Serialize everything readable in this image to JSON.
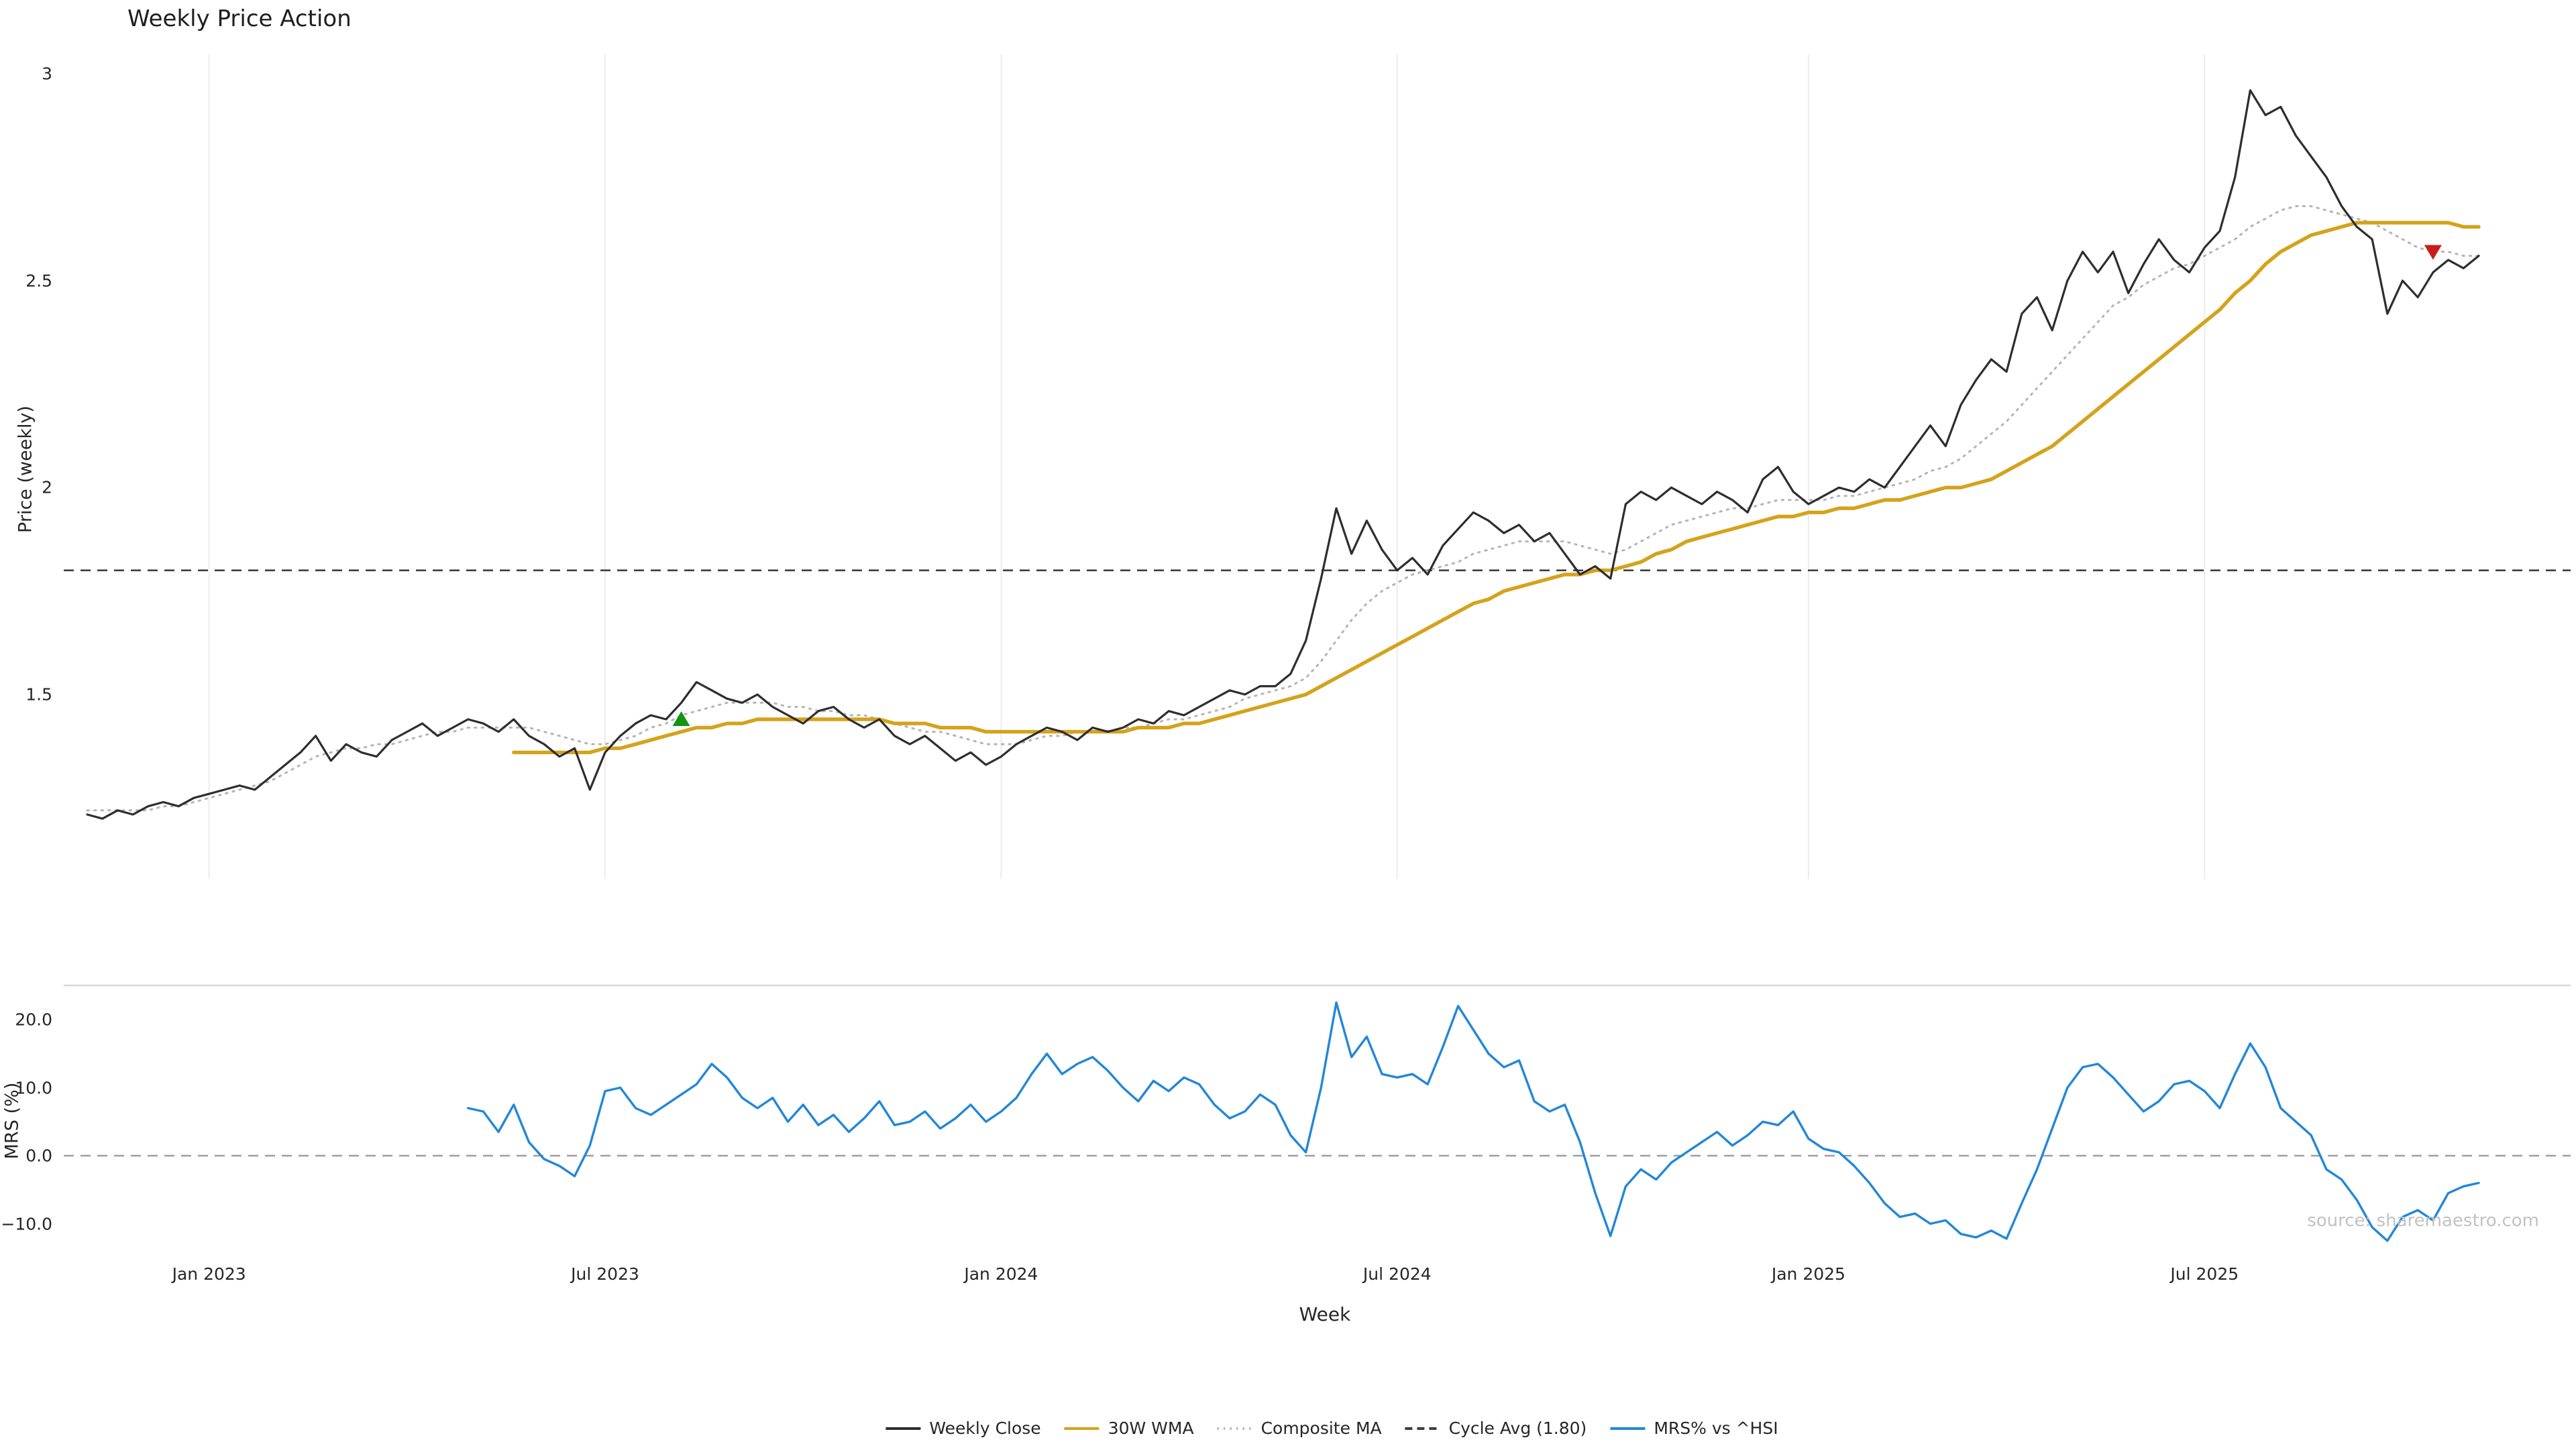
{
  "source_note": "source: sharemaestro.com",
  "colors": {
    "weekly_close": "#2e2e2e",
    "wma_30w": "#d4a31c",
    "composite_ma": "#b5b5b5",
    "cycle_avg": "#3d3d3d",
    "mrs": "#2287d8",
    "zero_line": "#9e9e9e",
    "grid": "#ececec",
    "spine": "#d8d8d8",
    "buy_marker": "#149414",
    "sell_marker": "#c91d1d"
  },
  "chart_data": {
    "type": "line",
    "title": "Weekly Price Action",
    "x_axis": {
      "label": "Week",
      "tick_labels": [
        "Jan 2023",
        "Jul 2023",
        "Jan 2024",
        "Jul 2024",
        "Jan 2025",
        "Jul 2025"
      ],
      "tick_week_indices": [
        8,
        34,
        60,
        86,
        113,
        139
      ],
      "weeks_total": 158
    },
    "price_panel": {
      "ylabel": "Price (weekly)",
      "tick_values": [
        1.5,
        2,
        2.5,
        3
      ],
      "tick_labels": [
        "1.5",
        "2",
        "2.5",
        "3"
      ],
      "ylim": [
        1.05,
        3.05
      ],
      "reference_line": {
        "name": "Cycle Avg (1.80)",
        "value": 1.8,
        "style": "dashed"
      }
    },
    "mrs_panel": {
      "ylabel": "MRS (%)",
      "tick_values": [
        -10,
        0,
        10,
        20
      ],
      "tick_labels": [
        "−10.0",
        "0.0",
        "10.0",
        "20.0"
      ],
      "ylim": [
        -15,
        25
      ],
      "zero_line": {
        "value": 0,
        "style": "dashed"
      }
    },
    "series": [
      {
        "name": "Weekly Close",
        "key": "weekly_close",
        "panel": "price",
        "style": "solid",
        "color": "#2e2e2e",
        "start_index": 0,
        "values": [
          1.21,
          1.2,
          1.22,
          1.21,
          1.23,
          1.24,
          1.23,
          1.25,
          1.26,
          1.27,
          1.28,
          1.27,
          1.3,
          1.33,
          1.36,
          1.4,
          1.34,
          1.38,
          1.36,
          1.35,
          1.39,
          1.41,
          1.43,
          1.4,
          1.42,
          1.44,
          1.43,
          1.41,
          1.44,
          1.4,
          1.38,
          1.35,
          1.37,
          1.27,
          1.36,
          1.4,
          1.43,
          1.45,
          1.44,
          1.48,
          1.53,
          1.51,
          1.49,
          1.48,
          1.5,
          1.47,
          1.45,
          1.43,
          1.46,
          1.47,
          1.44,
          1.42,
          1.44,
          1.4,
          1.38,
          1.4,
          1.37,
          1.34,
          1.36,
          1.33,
          1.35,
          1.38,
          1.4,
          1.42,
          1.41,
          1.39,
          1.42,
          1.41,
          1.42,
          1.44,
          1.43,
          1.46,
          1.45,
          1.47,
          1.49,
          1.51,
          1.5,
          1.52,
          1.52,
          1.55,
          1.63,
          1.78,
          1.95,
          1.84,
          1.92,
          1.85,
          1.8,
          1.83,
          1.79,
          1.86,
          1.9,
          1.94,
          1.92,
          1.89,
          1.91,
          1.87,
          1.89,
          1.84,
          1.79,
          1.81,
          1.78,
          1.96,
          1.99,
          1.97,
          2.0,
          1.98,
          1.96,
          1.99,
          1.97,
          1.94,
          2.02,
          2.05,
          1.99,
          1.96,
          1.98,
          2.0,
          1.99,
          2.02,
          2.0,
          2.05,
          2.1,
          2.15,
          2.1,
          2.2,
          2.26,
          2.31,
          2.28,
          2.42,
          2.46,
          2.38,
          2.5,
          2.57,
          2.52,
          2.57,
          2.47,
          2.54,
          2.6,
          2.55,
          2.52,
          2.58,
          2.62,
          2.75,
          2.96,
          2.9,
          2.92,
          2.85,
          2.8,
          2.75,
          2.68,
          2.63,
          2.6,
          2.42,
          2.5,
          2.46,
          2.52,
          2.55,
          2.53,
          2.56
        ]
      },
      {
        "name": "30W WMA",
        "key": "wma_30w",
        "panel": "price",
        "style": "solid",
        "color": "#d4a31c",
        "start_index": 28,
        "values": [
          1.36,
          1.36,
          1.36,
          1.36,
          1.36,
          1.36,
          1.37,
          1.37,
          1.38,
          1.39,
          1.4,
          1.41,
          1.42,
          1.42,
          1.43,
          1.43,
          1.44,
          1.44,
          1.44,
          1.44,
          1.44,
          1.44,
          1.44,
          1.44,
          1.44,
          1.43,
          1.43,
          1.43,
          1.42,
          1.42,
          1.42,
          1.41,
          1.41,
          1.41,
          1.41,
          1.41,
          1.41,
          1.41,
          1.41,
          1.41,
          1.41,
          1.42,
          1.42,
          1.42,
          1.43,
          1.43,
          1.44,
          1.45,
          1.46,
          1.47,
          1.48,
          1.49,
          1.5,
          1.52,
          1.54,
          1.56,
          1.58,
          1.6,
          1.62,
          1.64,
          1.66,
          1.68,
          1.7,
          1.72,
          1.73,
          1.75,
          1.76,
          1.77,
          1.78,
          1.79,
          1.79,
          1.8,
          1.8,
          1.81,
          1.82,
          1.84,
          1.85,
          1.87,
          1.88,
          1.89,
          1.9,
          1.91,
          1.92,
          1.93,
          1.93,
          1.94,
          1.94,
          1.95,
          1.95,
          1.96,
          1.97,
          1.97,
          1.98,
          1.99,
          2.0,
          2.0,
          2.01,
          2.02,
          2.04,
          2.06,
          2.08,
          2.1,
          2.13,
          2.16,
          2.19,
          2.22,
          2.25,
          2.28,
          2.31,
          2.34,
          2.37,
          2.4,
          2.43,
          2.47,
          2.5,
          2.54,
          2.57,
          2.59,
          2.61,
          2.62,
          2.63,
          2.64,
          2.64,
          2.64,
          2.64,
          2.64,
          2.64,
          2.64,
          2.63,
          2.63
        ]
      },
      {
        "name": "Composite MA",
        "key": "composite_ma",
        "panel": "price",
        "style": "dotted",
        "color": "#b5b5b5",
        "start_index": 0,
        "values": [
          1.22,
          1.22,
          1.22,
          1.22,
          1.22,
          1.23,
          1.23,
          1.24,
          1.25,
          1.26,
          1.27,
          1.28,
          1.29,
          1.31,
          1.33,
          1.35,
          1.36,
          1.37,
          1.37,
          1.38,
          1.38,
          1.39,
          1.4,
          1.41,
          1.41,
          1.42,
          1.42,
          1.42,
          1.42,
          1.42,
          1.41,
          1.4,
          1.39,
          1.38,
          1.38,
          1.39,
          1.4,
          1.42,
          1.43,
          1.45,
          1.46,
          1.47,
          1.48,
          1.48,
          1.48,
          1.48,
          1.47,
          1.47,
          1.46,
          1.46,
          1.45,
          1.45,
          1.44,
          1.43,
          1.42,
          1.41,
          1.41,
          1.4,
          1.39,
          1.38,
          1.38,
          1.38,
          1.39,
          1.4,
          1.4,
          1.41,
          1.41,
          1.41,
          1.42,
          1.42,
          1.43,
          1.44,
          1.44,
          1.45,
          1.46,
          1.47,
          1.49,
          1.5,
          1.51,
          1.52,
          1.54,
          1.58,
          1.63,
          1.68,
          1.72,
          1.75,
          1.77,
          1.79,
          1.8,
          1.81,
          1.82,
          1.84,
          1.85,
          1.86,
          1.87,
          1.87,
          1.87,
          1.87,
          1.86,
          1.85,
          1.84,
          1.85,
          1.87,
          1.89,
          1.91,
          1.92,
          1.93,
          1.94,
          1.95,
          1.95,
          1.96,
          1.97,
          1.97,
          1.97,
          1.97,
          1.98,
          1.98,
          1.99,
          2.0,
          2.01,
          2.02,
          2.04,
          2.05,
          2.07,
          2.1,
          2.13,
          2.16,
          2.2,
          2.24,
          2.28,
          2.32,
          2.36,
          2.4,
          2.44,
          2.46,
          2.49,
          2.51,
          2.53,
          2.54,
          2.56,
          2.58,
          2.6,
          2.63,
          2.65,
          2.67,
          2.68,
          2.68,
          2.67,
          2.66,
          2.65,
          2.64,
          2.62,
          2.6,
          2.58,
          2.57,
          2.57,
          2.56,
          2.56
        ]
      },
      {
        "name": "MRS% vs ^HSI",
        "key": "mrs_vs_hsi",
        "panel": "mrs",
        "style": "solid",
        "color": "#2287d8",
        "start_index": 25,
        "values": [
          7.0,
          6.5,
          3.5,
          7.5,
          2.0,
          -0.5,
          -1.5,
          -3.0,
          1.5,
          9.5,
          10.0,
          7.0,
          6.0,
          7.5,
          9.0,
          10.5,
          13.5,
          11.5,
          8.5,
          7.0,
          8.5,
          5.0,
          7.5,
          4.5,
          6.0,
          3.5,
          5.5,
          8.0,
          4.5,
          5.0,
          6.5,
          4.0,
          5.5,
          7.5,
          5.0,
          6.5,
          8.5,
          12.0,
          15.0,
          12.0,
          13.5,
          14.5,
          12.5,
          10.0,
          8.0,
          11.0,
          9.5,
          11.5,
          10.5,
          7.5,
          5.5,
          6.5,
          9.0,
          7.5,
          3.0,
          0.5,
          10.0,
          22.5,
          14.5,
          17.5,
          12.0,
          11.5,
          12.0,
          10.5,
          16.0,
          22.0,
          18.5,
          15.0,
          13.0,
          14.0,
          8.0,
          6.5,
          7.5,
          2.0,
          -5.5,
          -11.8,
          -4.5,
          -2.0,
          -3.5,
          -1.0,
          0.5,
          2.0,
          3.5,
          1.5,
          3.0,
          5.0,
          4.5,
          6.5,
          2.5,
          1.0,
          0.5,
          -1.5,
          -4.0,
          -7.0,
          -9.0,
          -8.5,
          -10.0,
          -9.5,
          -11.5,
          -12.0,
          -11.0,
          -12.2,
          -7.0,
          -2.0,
          4.0,
          10.0,
          13.0,
          13.5,
          11.5,
          9.0,
          6.5,
          8.0,
          10.5,
          11.0,
          9.5,
          7.0,
          12.0,
          16.5,
          13.0,
          7.0,
          5.0,
          3.0,
          -2.0,
          -3.5,
          -6.5,
          -10.5,
          -12.5,
          -9.0,
          -8.0,
          -9.5,
          -5.5,
          -4.5,
          -4.0
        ]
      }
    ],
    "markers": [
      {
        "type": "buy",
        "symbol": "triangle-up",
        "color": "#149414",
        "week_index": 39,
        "price": 1.44
      },
      {
        "type": "sell",
        "symbol": "triangle-down",
        "color": "#c91d1d",
        "week_index": 154,
        "price": 2.57
      }
    ]
  },
  "legend": {
    "items": [
      {
        "label": "Weekly Close",
        "style": "solid",
        "color": "#2e2e2e"
      },
      {
        "label": "30W WMA",
        "style": "solid",
        "color": "#d4a31c"
      },
      {
        "label": "Composite MA",
        "style": "dotted",
        "color": "#b5b5b5"
      },
      {
        "label": "Cycle Avg (1.80)",
        "style": "dashed",
        "color": "#3d3d3d"
      },
      {
        "label": "MRS% vs ^HSI",
        "style": "solid",
        "color": "#2287d8"
      }
    ]
  }
}
